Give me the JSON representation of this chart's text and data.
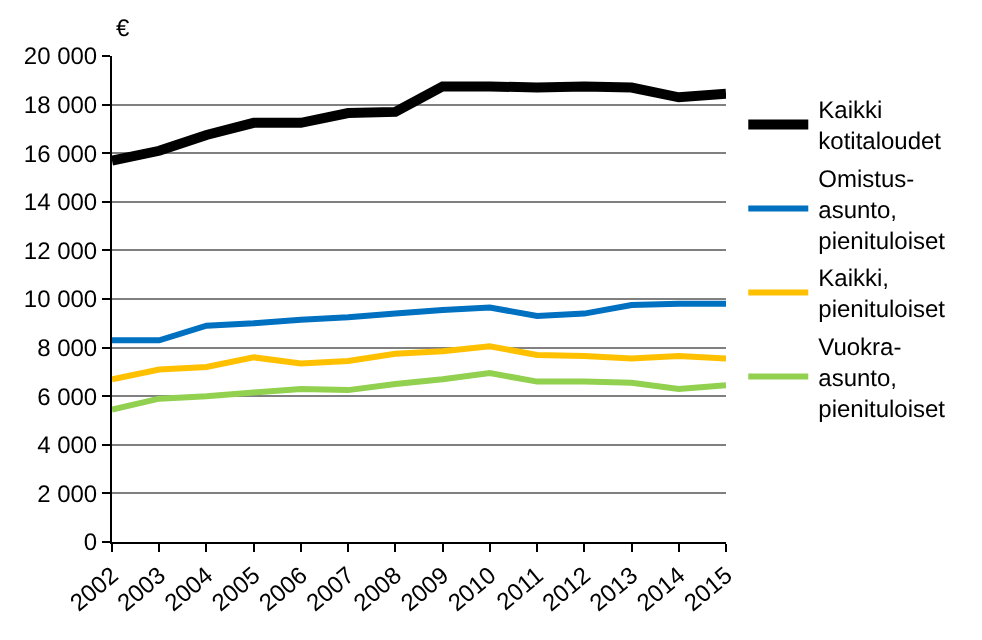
{
  "chart_data": {
    "type": "line",
    "ylabel": "€",
    "x": [
      2002,
      2003,
      2004,
      2005,
      2006,
      2007,
      2008,
      2009,
      2010,
      2011,
      2012,
      2013,
      2014,
      2015
    ],
    "xlim": [
      2002,
      2015
    ],
    "xticks": [
      2002,
      2003,
      2004,
      2005,
      2006,
      2007,
      2008,
      2009,
      2010,
      2011,
      2012,
      2013,
      2014,
      2015
    ],
    "ylim": [
      0,
      20000
    ],
    "yticks": [
      {
        "value": 0,
        "label": "0"
      },
      {
        "value": 2000,
        "label": "2 000"
      },
      {
        "value": 4000,
        "label": "4 000"
      },
      {
        "value": 6000,
        "label": "6 000"
      },
      {
        "value": 8000,
        "label": "8 000"
      },
      {
        "value": 10000,
        "label": "10 000"
      },
      {
        "value": 12000,
        "label": "12 000"
      },
      {
        "value": 14000,
        "label": "14 000"
      },
      {
        "value": 16000,
        "label": "16 000"
      },
      {
        "value": 18000,
        "label": "18 000"
      },
      {
        "value": 20000,
        "label": "20 000"
      }
    ],
    "grid": "y",
    "legend": "right",
    "marker": "none",
    "line_style": "solid",
    "series": [
      {
        "name": "Kaikki\nkotitaloudet",
        "color": "#000000",
        "values": [
          15700,
          16100,
          16750,
          17250,
          17250,
          17650,
          17700,
          18750,
          18750,
          18700,
          18750,
          18700,
          18300,
          18450
        ]
      },
      {
        "name": "Omistus-\nasunto,\npienituloiset",
        "color": "#0070c0",
        "values": [
          8300,
          8300,
          8900,
          9000,
          9150,
          9250,
          9400,
          9550,
          9650,
          9300,
          9400,
          9750,
          9800,
          9800
        ]
      },
      {
        "name": "Kaikki,\npienituloiset",
        "color": "#ffc000",
        "values": [
          6700,
          7100,
          7200,
          7600,
          7350,
          7450,
          7750,
          7850,
          8050,
          7700,
          7650,
          7550,
          7650,
          7550
        ]
      },
      {
        "name": "Vuokra-\nasunto,\npienituloiset",
        "color": "#92d050",
        "values": [
          5450,
          5900,
          6000,
          6150,
          6300,
          6250,
          6500,
          6700,
          6950,
          6600,
          6600,
          6550,
          6300,
          6450
        ]
      }
    ]
  }
}
